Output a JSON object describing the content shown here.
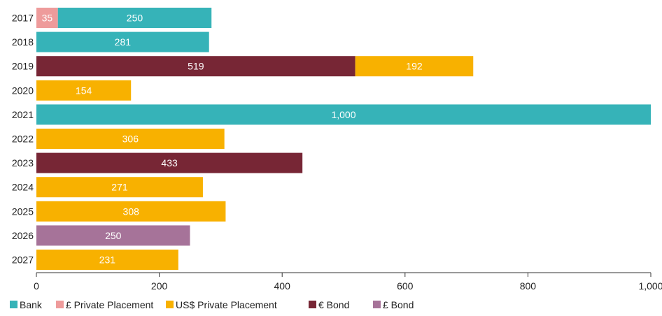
{
  "chart_data": {
    "type": "bar",
    "orientation": "horizontal",
    "stacked": true,
    "categories": [
      "2017",
      "2018",
      "2019",
      "2020",
      "2021",
      "2022",
      "2023",
      "2024",
      "2025",
      "2026",
      "2027"
    ],
    "series": [
      {
        "name": "Bank",
        "color": "#36b3b8",
        "values": [
          250,
          281,
          0,
          0,
          1000,
          0,
          0,
          0,
          0,
          0,
          0
        ]
      },
      {
        "name": "£ Private Placement",
        "color": "#ee9b9b",
        "values": [
          35,
          0,
          0,
          0,
          0,
          0,
          0,
          0,
          0,
          0,
          0
        ]
      },
      {
        "name": "US$ Private Placement",
        "color": "#f8b100",
        "values": [
          0,
          0,
          192,
          154,
          0,
          306,
          0,
          271,
          308,
          0,
          231
        ]
      },
      {
        "name": "€ Bond",
        "color": "#772635",
        "values": [
          0,
          0,
          519,
          0,
          0,
          0,
          433,
          0,
          0,
          0,
          0
        ]
      },
      {
        "name": "£ Bond",
        "color": "#a67399",
        "values": [
          0,
          0,
          0,
          0,
          0,
          0,
          0,
          0,
          0,
          250,
          0
        ]
      }
    ],
    "stack_order": [
      [
        "£ Private Placement",
        "Bank"
      ],
      [
        "Bank"
      ],
      [
        "€ Bond",
        "US$ Private Placement"
      ],
      [
        "US$ Private Placement"
      ],
      [
        "Bank"
      ],
      [
        "US$ Private Placement"
      ],
      [
        "€ Bond"
      ],
      [
        "US$ Private Placement"
      ],
      [
        "US$ Private Placement"
      ],
      [
        "£ Bond"
      ],
      [
        "US$ Private Placement"
      ]
    ],
    "data_labels": [
      [
        "35",
        "250"
      ],
      [
        "281"
      ],
      [
        "519",
        "192"
      ],
      [
        "154"
      ],
      [
        "1,000"
      ],
      [
        "306"
      ],
      [
        "433"
      ],
      [
        "271"
      ],
      [
        "308"
      ],
      [
        "250"
      ],
      [
        "231"
      ]
    ],
    "x_ticks": [
      0,
      200,
      400,
      600,
      800,
      1000
    ],
    "x_tick_labels": [
      "0",
      "200",
      "400",
      "600",
      "800",
      "1,000"
    ],
    "xlim": [
      0,
      1000
    ],
    "grid": false,
    "legend_position": "bottom-left",
    "title": "",
    "xlabel": "",
    "ylabel": ""
  }
}
